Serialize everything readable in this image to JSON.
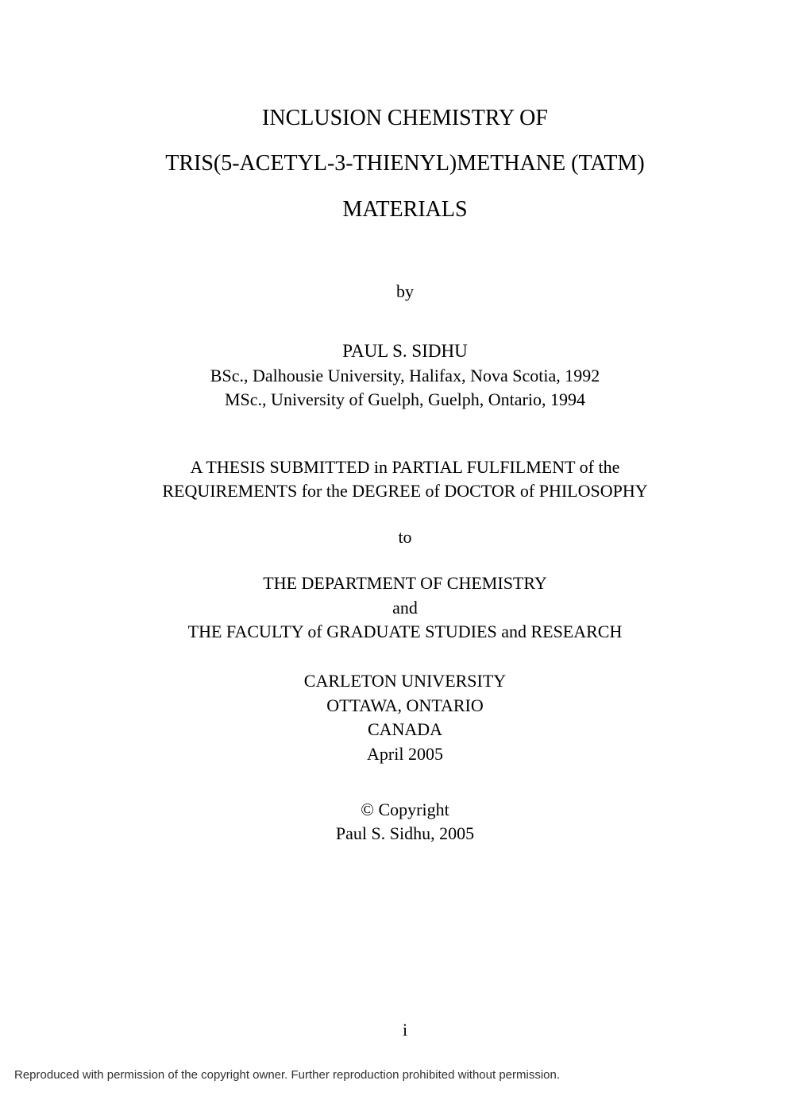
{
  "title": {
    "line1": "INCLUSION CHEMISTRY OF",
    "line2": "TRIS(5-ACETYL-3-THIENYL)METHANE (TATM)",
    "line3": "MATERIALS"
  },
  "by": "by",
  "author": {
    "name": "PAUL S. SIDHU",
    "degree1": "BSc., Dalhousie University, Halifax, Nova Scotia, 1992",
    "degree2": "MSc., University of Guelph, Guelph, Ontario, 1994"
  },
  "submission": {
    "line1": "A THESIS SUBMITTED in PARTIAL FULFILMENT of the",
    "line2": "REQUIREMENTS for the DEGREE of DOCTOR of PHILOSOPHY"
  },
  "to": "to",
  "department": {
    "line1": "THE DEPARTMENT OF CHEMISTRY",
    "line2": "and",
    "line3": "THE FACULTY of GRADUATE STUDIES and RESEARCH"
  },
  "university": {
    "name": "CARLETON UNIVERSITY",
    "city": "OTTAWA, ONTARIO",
    "country": "CANADA",
    "date": "April 2005"
  },
  "copyright": {
    "line1": "© Copyright",
    "line2": "Paul S. Sidhu, 2005"
  },
  "page_number": "i",
  "footer": "Reproduced with permission of the copyright owner.  Further reproduction prohibited without permission."
}
